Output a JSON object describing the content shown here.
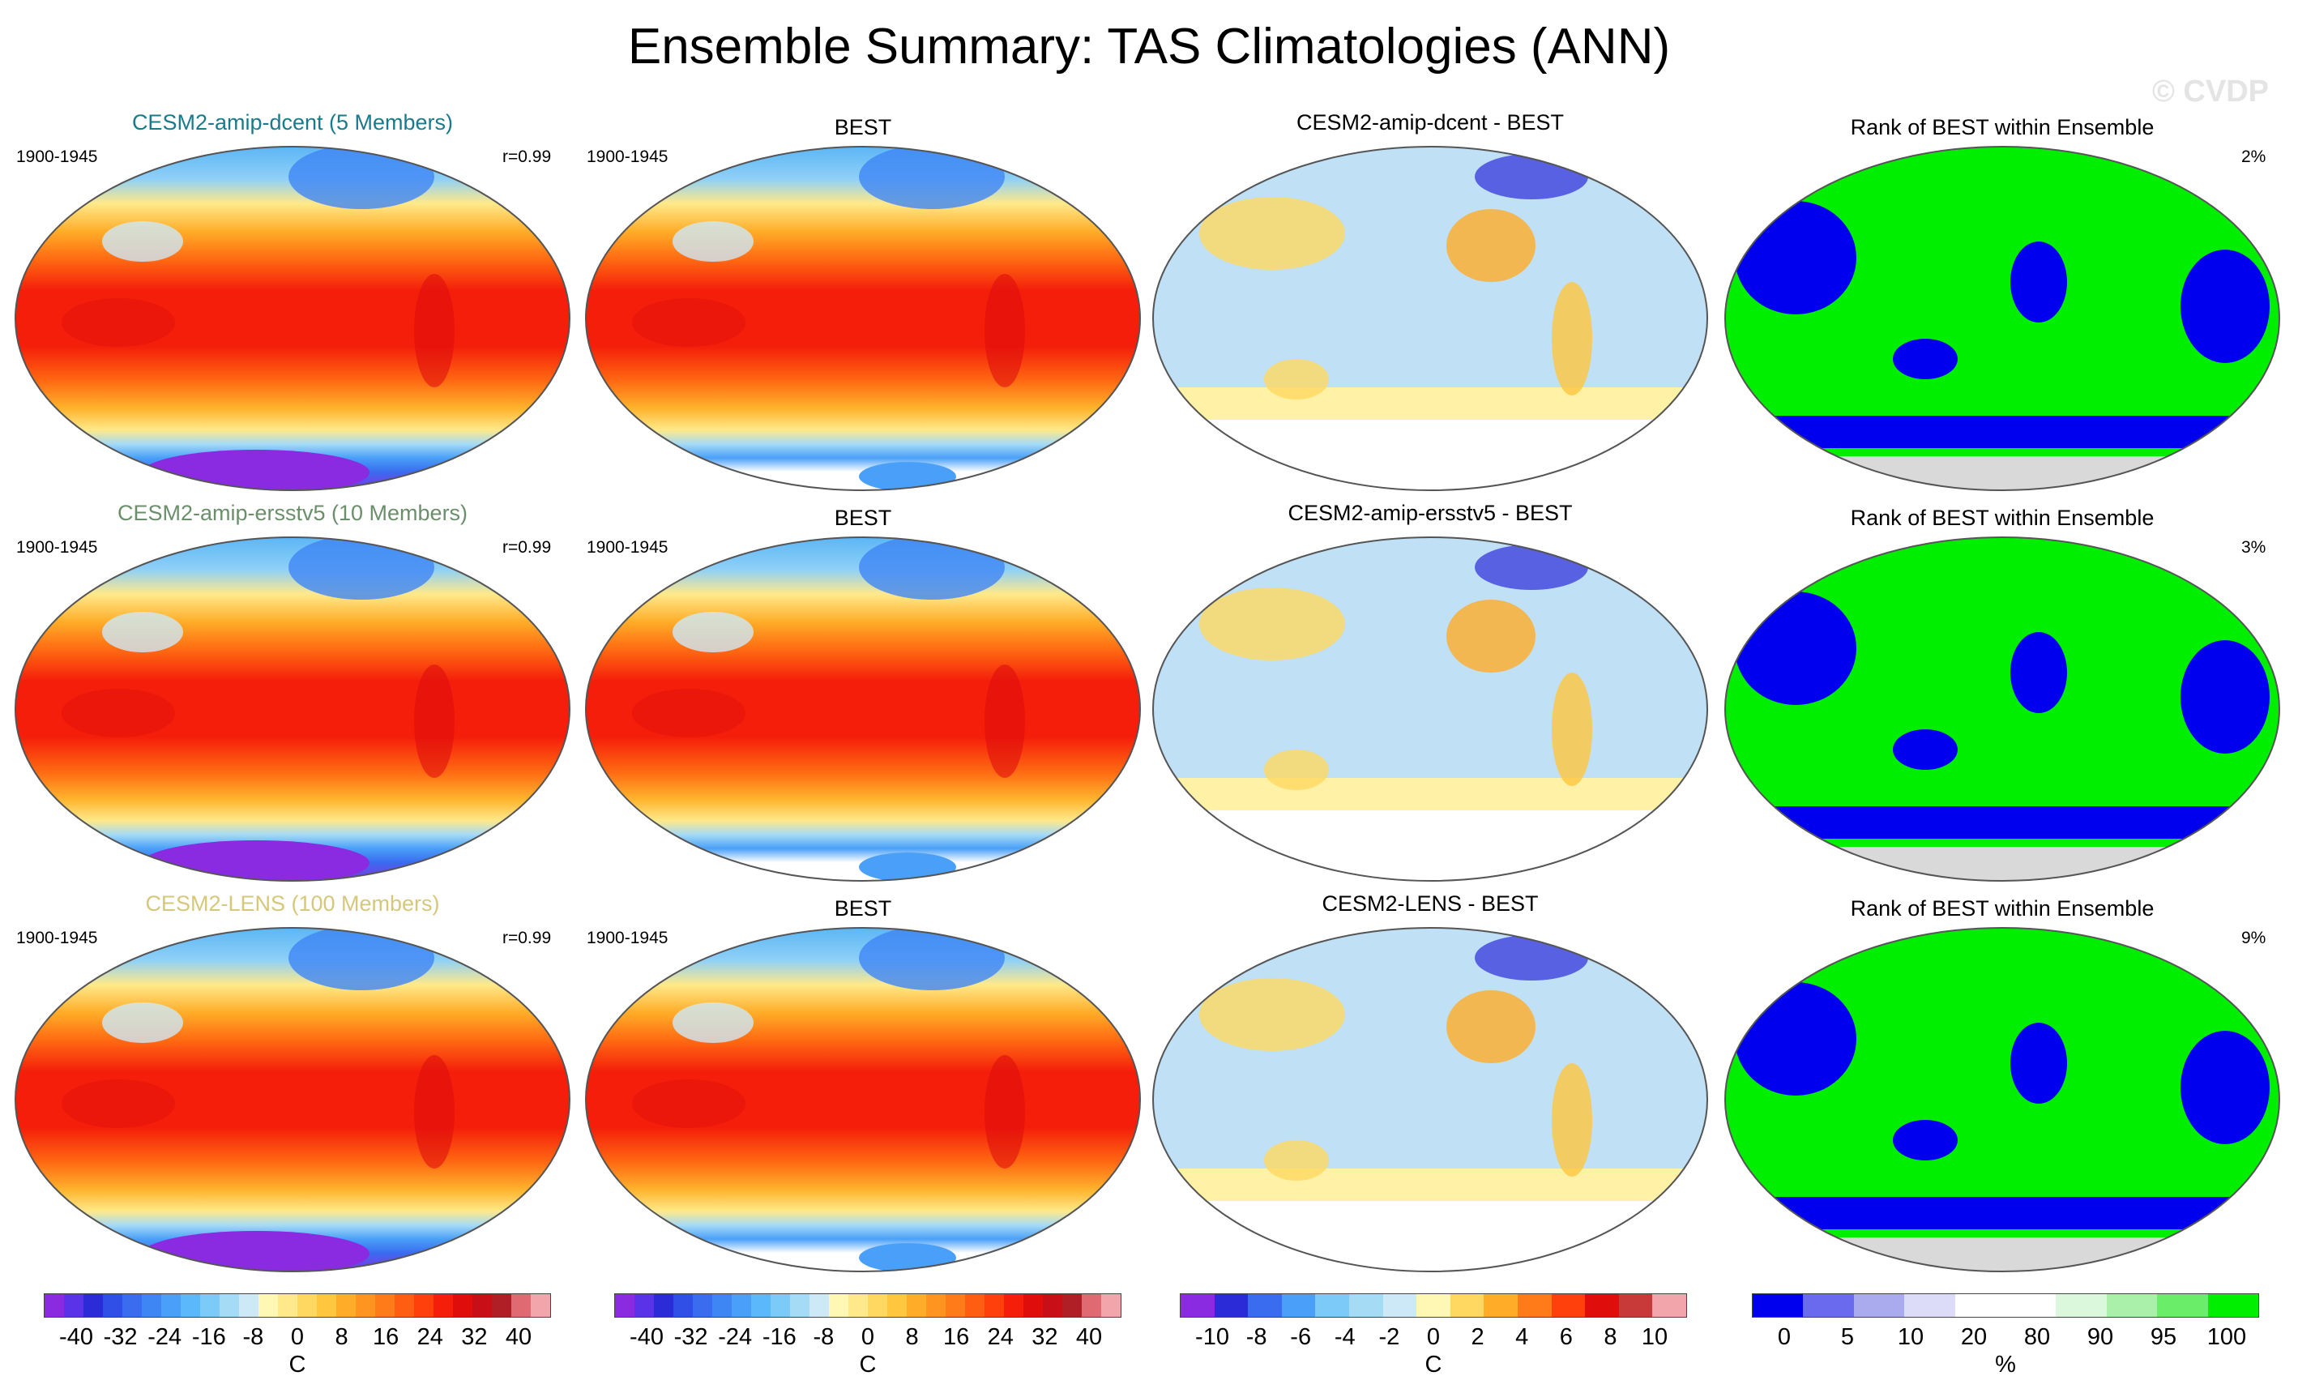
{
  "title": "Ensemble Summary: TAS Climatologies (ANN)",
  "watermark": "© CVDP",
  "rows": [
    {
      "ensemble_title": "CESM2-amip-dcent (5 Members)",
      "ensemble_title_color": "#1a7a8c",
      "period": "1900-1945",
      "corr": "r=0.99",
      "obs_title": "BEST",
      "obs_period": "1900-1945",
      "diff_title": "CESM2-amip-dcent - BEST",
      "rank_title": "Rank of BEST within Ensemble",
      "rank_pct": "2%"
    },
    {
      "ensemble_title": "CESM2-amip-ersstv5 (10 Members)",
      "ensemble_title_color": "#6b8f6b",
      "period": "1900-1945",
      "corr": "r=0.99",
      "obs_title": "BEST",
      "obs_period": "1900-1945",
      "diff_title": "CESM2-amip-ersstv5 - BEST",
      "rank_title": "Rank of BEST within Ensemble",
      "rank_pct": "3%"
    },
    {
      "ensemble_title": "CESM2-LENS (100 Members)",
      "ensemble_title_color": "#d6c77a",
      "period": "1900-1945",
      "corr": "r=0.99",
      "obs_title": "BEST",
      "obs_period": "1900-1945",
      "diff_title": "CESM2-LENS - BEST",
      "rank_title": "Rank of BEST within Ensemble",
      "rank_pct": "9%"
    }
  ],
  "colorbars": {
    "clim": {
      "labels": [
        "-40",
        "-32",
        "-24",
        "-16",
        "-8",
        "0",
        "8",
        "16",
        "24",
        "32",
        "40"
      ],
      "unit": "C",
      "colors": [
        "#8a2be2",
        "#5a32e8",
        "#2b2bd8",
        "#2f4fe6",
        "#3a6cf0",
        "#3f86f5",
        "#4aa0f8",
        "#5ab8fb",
        "#7ccaf8",
        "#a6dbf6",
        "#cde9f7",
        "#fff7b3",
        "#ffe98a",
        "#ffd862",
        "#ffc63e",
        "#ffad28",
        "#ff9420",
        "#ff7a18",
        "#ff5e12",
        "#ff3f0c",
        "#f41e0a",
        "#e00d0d",
        "#c80f18",
        "#b01e26",
        "#e06a72",
        "#f2a6ac"
      ]
    },
    "diff": {
      "labels": [
        "-10",
        "-8",
        "-6",
        "-4",
        "-2",
        "0",
        "2",
        "4",
        "6",
        "8",
        "10"
      ],
      "unit": "C",
      "colors": [
        "#8a2be2",
        "#2b2bd8",
        "#3a6cf0",
        "#4aa0f8",
        "#7ccaf8",
        "#a6dbf6",
        "#cde9f7",
        "#fff7b3",
        "#ffd862",
        "#ffad28",
        "#ff7a18",
        "#ff3f0c",
        "#e00d0d",
        "#c83a3a",
        "#f2a6ac"
      ]
    },
    "rank": {
      "labels": [
        "0",
        "5",
        "10",
        "20",
        "80",
        "90",
        "95",
        "100"
      ],
      "unit": "%",
      "colors": [
        "#0000ee",
        "#6a6aee",
        "#aaaaee",
        "#dcdcf8",
        "#ffffff",
        "#ffffff",
        "#dcf8dc",
        "#aaf0aa",
        "#6aee6a",
        "#00ee00"
      ]
    }
  }
}
